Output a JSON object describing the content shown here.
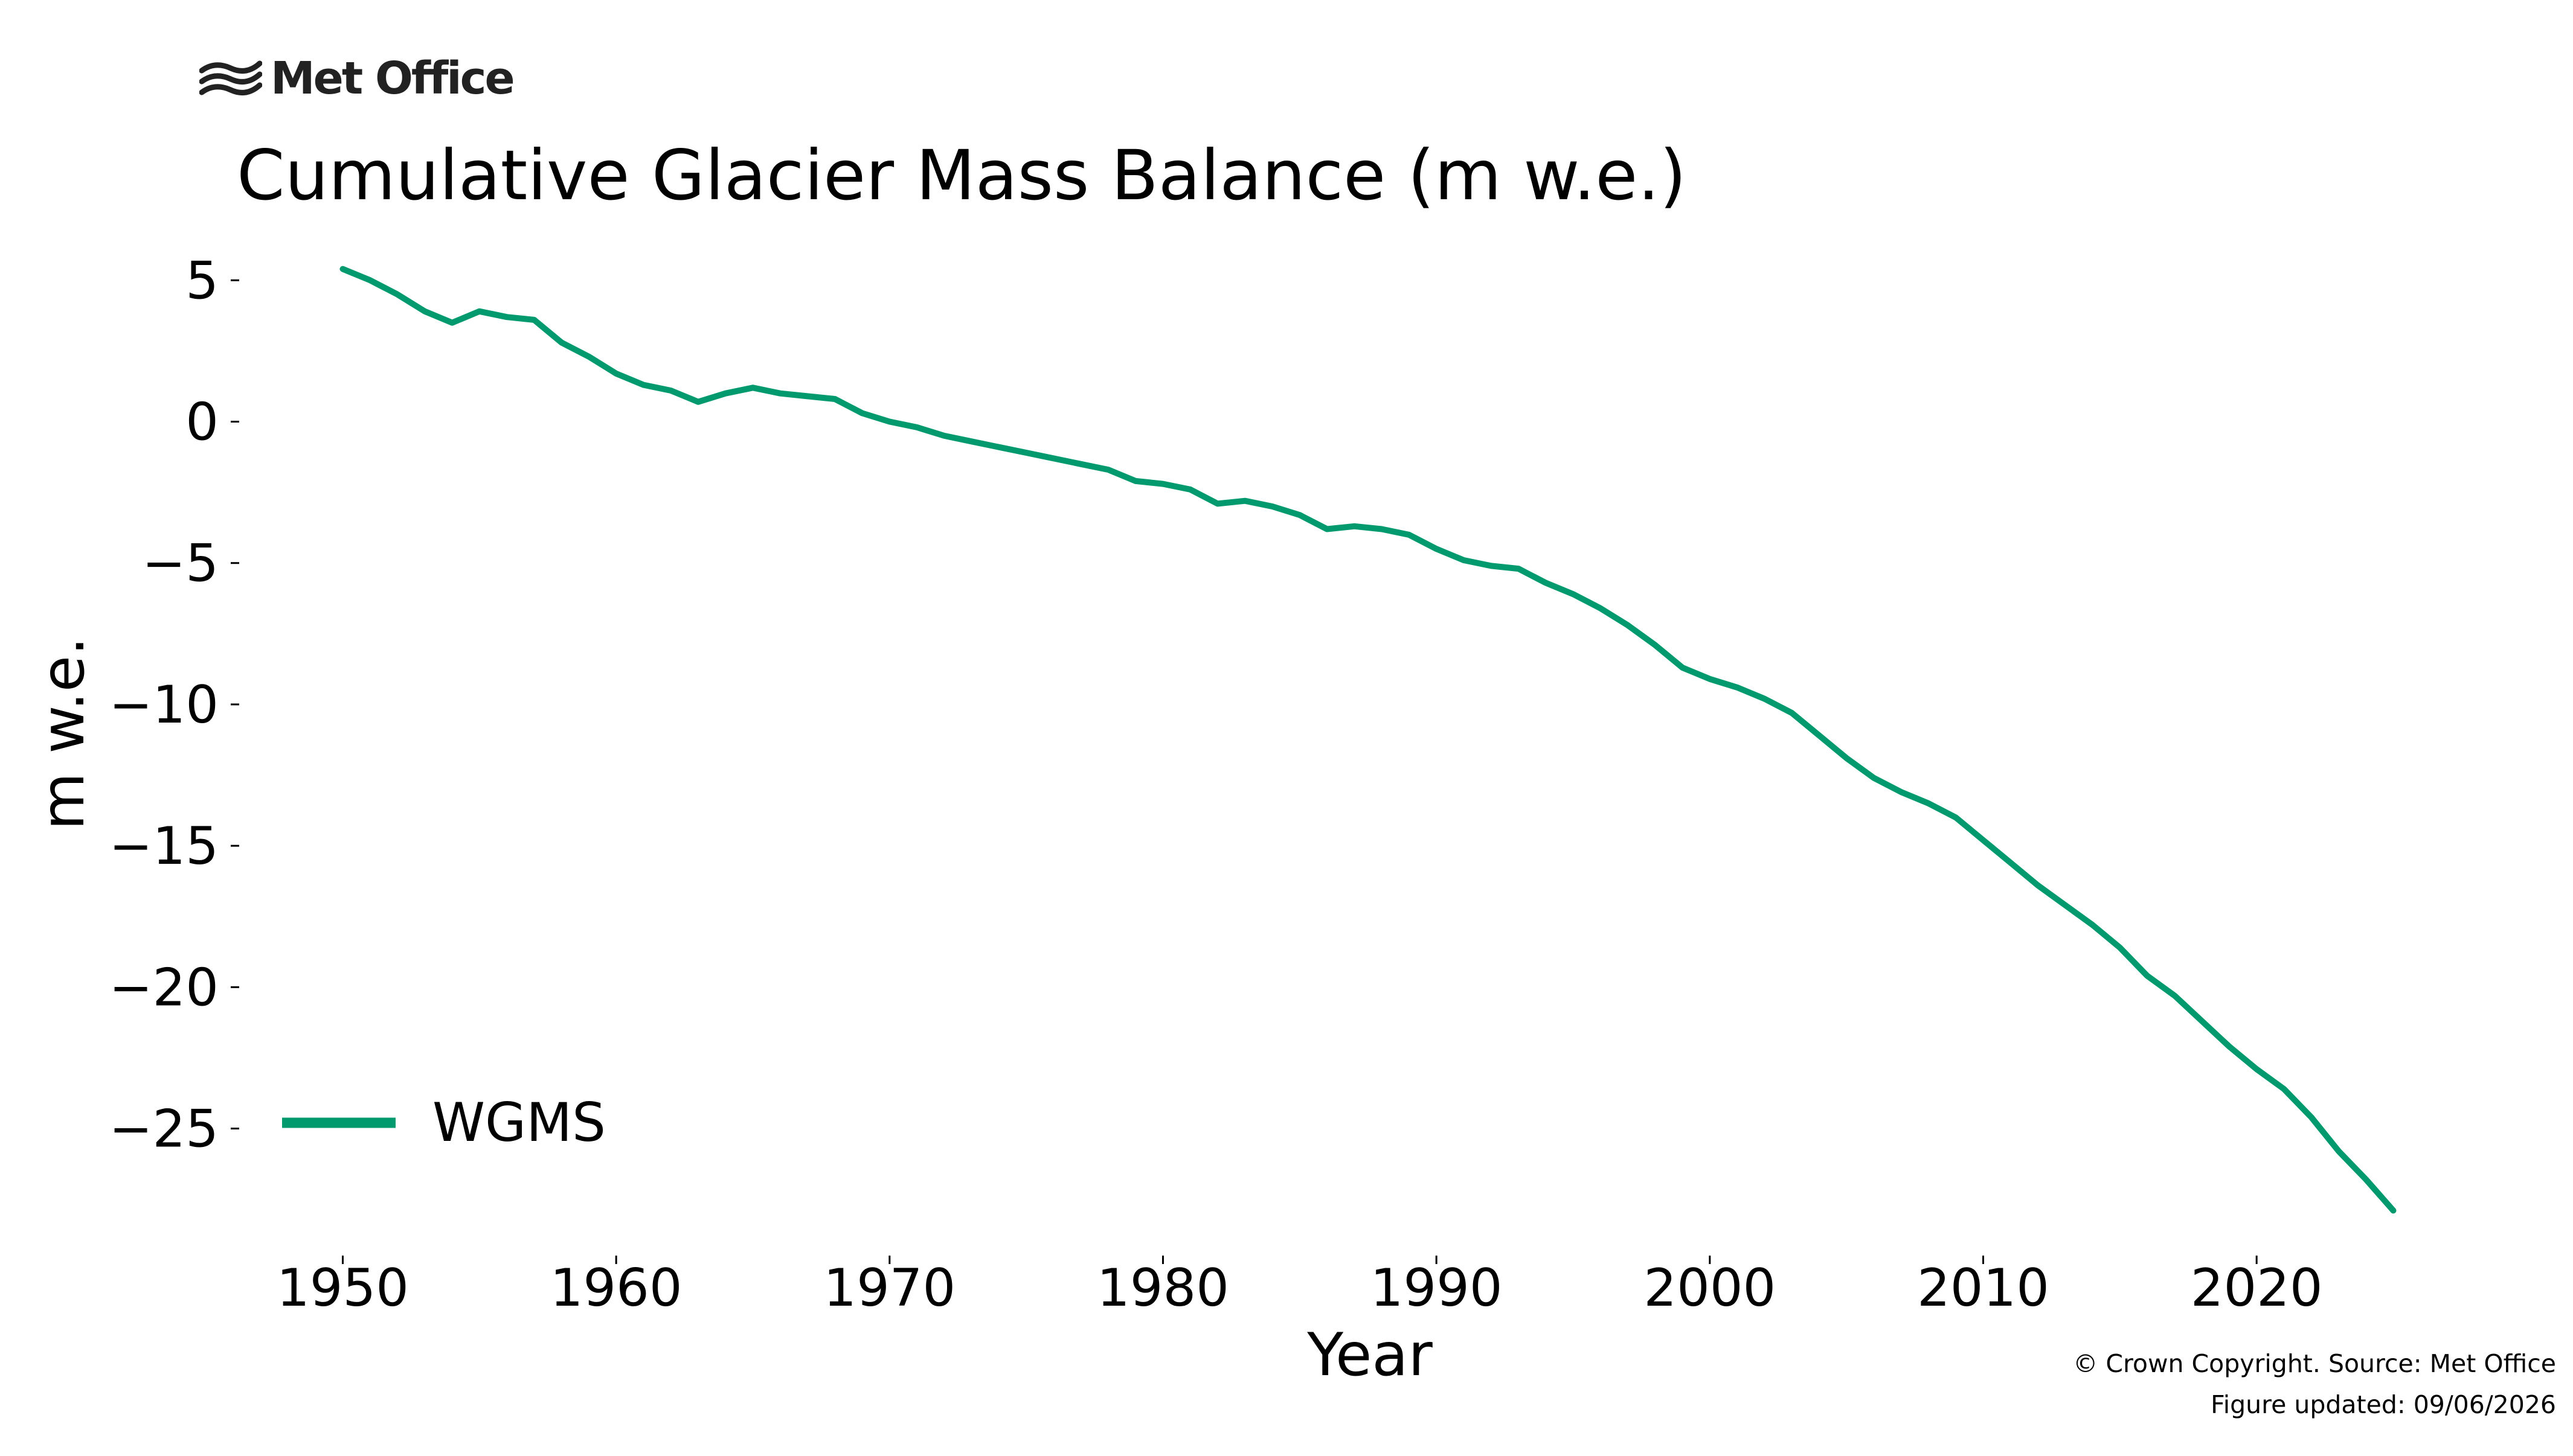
{
  "logo": {
    "text": "Met Office",
    "icon": "met-office-waves-icon"
  },
  "footer": {
    "copyright": "© Crown Copyright. Source: Met Office",
    "updated": "Figure updated: 09/06/2026"
  },
  "chart_data": {
    "type": "line",
    "title": "Cumulative Glacier Mass Balance (m w.e.)",
    "xlabel": "Year",
    "ylabel": "m w.e.",
    "xlim": [
      1946.3,
      2028.7
    ],
    "ylim": [
      -29.6,
      6.8
    ],
    "xticks": [
      1950,
      1960,
      1970,
      1980,
      1990,
      2000,
      2010,
      2020
    ],
    "yticks": [
      5,
      0,
      -5,
      -10,
      -15,
      -20,
      -25
    ],
    "ytick_labels": [
      "5",
      "0",
      "−5",
      "−10",
      "−15",
      "−20",
      "−25"
    ],
    "grid": false,
    "legend_position": "bottom-left",
    "line_color": "#009a6e",
    "x": [
      1950,
      1951,
      1952,
      1953,
      1954,
      1955,
      1956,
      1957,
      1958,
      1959,
      1960,
      1961,
      1962,
      1963,
      1964,
      1965,
      1966,
      1967,
      1968,
      1969,
      1970,
      1971,
      1972,
      1973,
      1974,
      1975,
      1976,
      1977,
      1978,
      1979,
      1980,
      1981,
      1982,
      1983,
      1984,
      1985,
      1986,
      1987,
      1988,
      1989,
      1990,
      1991,
      1992,
      1993,
      1994,
      1995,
      1996,
      1997,
      1998,
      1999,
      2000,
      2001,
      2002,
      2003,
      2004,
      2005,
      2006,
      2007,
      2008,
      2009,
      2010,
      2011,
      2012,
      2013,
      2014,
      2015,
      2016,
      2017,
      2018,
      2019,
      2020,
      2021,
      2022,
      2023,
      2024,
      2025
    ],
    "series": [
      {
        "name": "WGMS",
        "values": [
          5.4,
          5.0,
          4.5,
          3.9,
          3.5,
          3.9,
          3.7,
          3.6,
          2.8,
          2.3,
          1.7,
          1.3,
          1.1,
          0.7,
          1.0,
          1.2,
          1.0,
          0.9,
          0.8,
          0.3,
          0.0,
          -0.2,
          -0.5,
          -0.7,
          -0.9,
          -1.1,
          -1.3,
          -1.5,
          -1.7,
          -2.1,
          -2.2,
          -2.4,
          -2.9,
          -2.8,
          -3.0,
          -3.3,
          -3.8,
          -3.7,
          -3.8,
          -4.0,
          -4.5,
          -4.9,
          -5.1,
          -5.2,
          -5.7,
          -6.1,
          -6.6,
          -7.2,
          -7.9,
          -8.7,
          -9.1,
          -9.4,
          -9.8,
          -10.3,
          -11.1,
          -11.9,
          -12.6,
          -13.1,
          -13.5,
          -14.0,
          -14.8,
          -15.6,
          -16.4,
          -17.1,
          -17.8,
          -18.6,
          -19.6,
          -20.3,
          -21.2,
          -22.1,
          -22.9,
          -23.6,
          -24.6,
          -25.8,
          -26.8,
          -27.9
        ]
      }
    ]
  }
}
